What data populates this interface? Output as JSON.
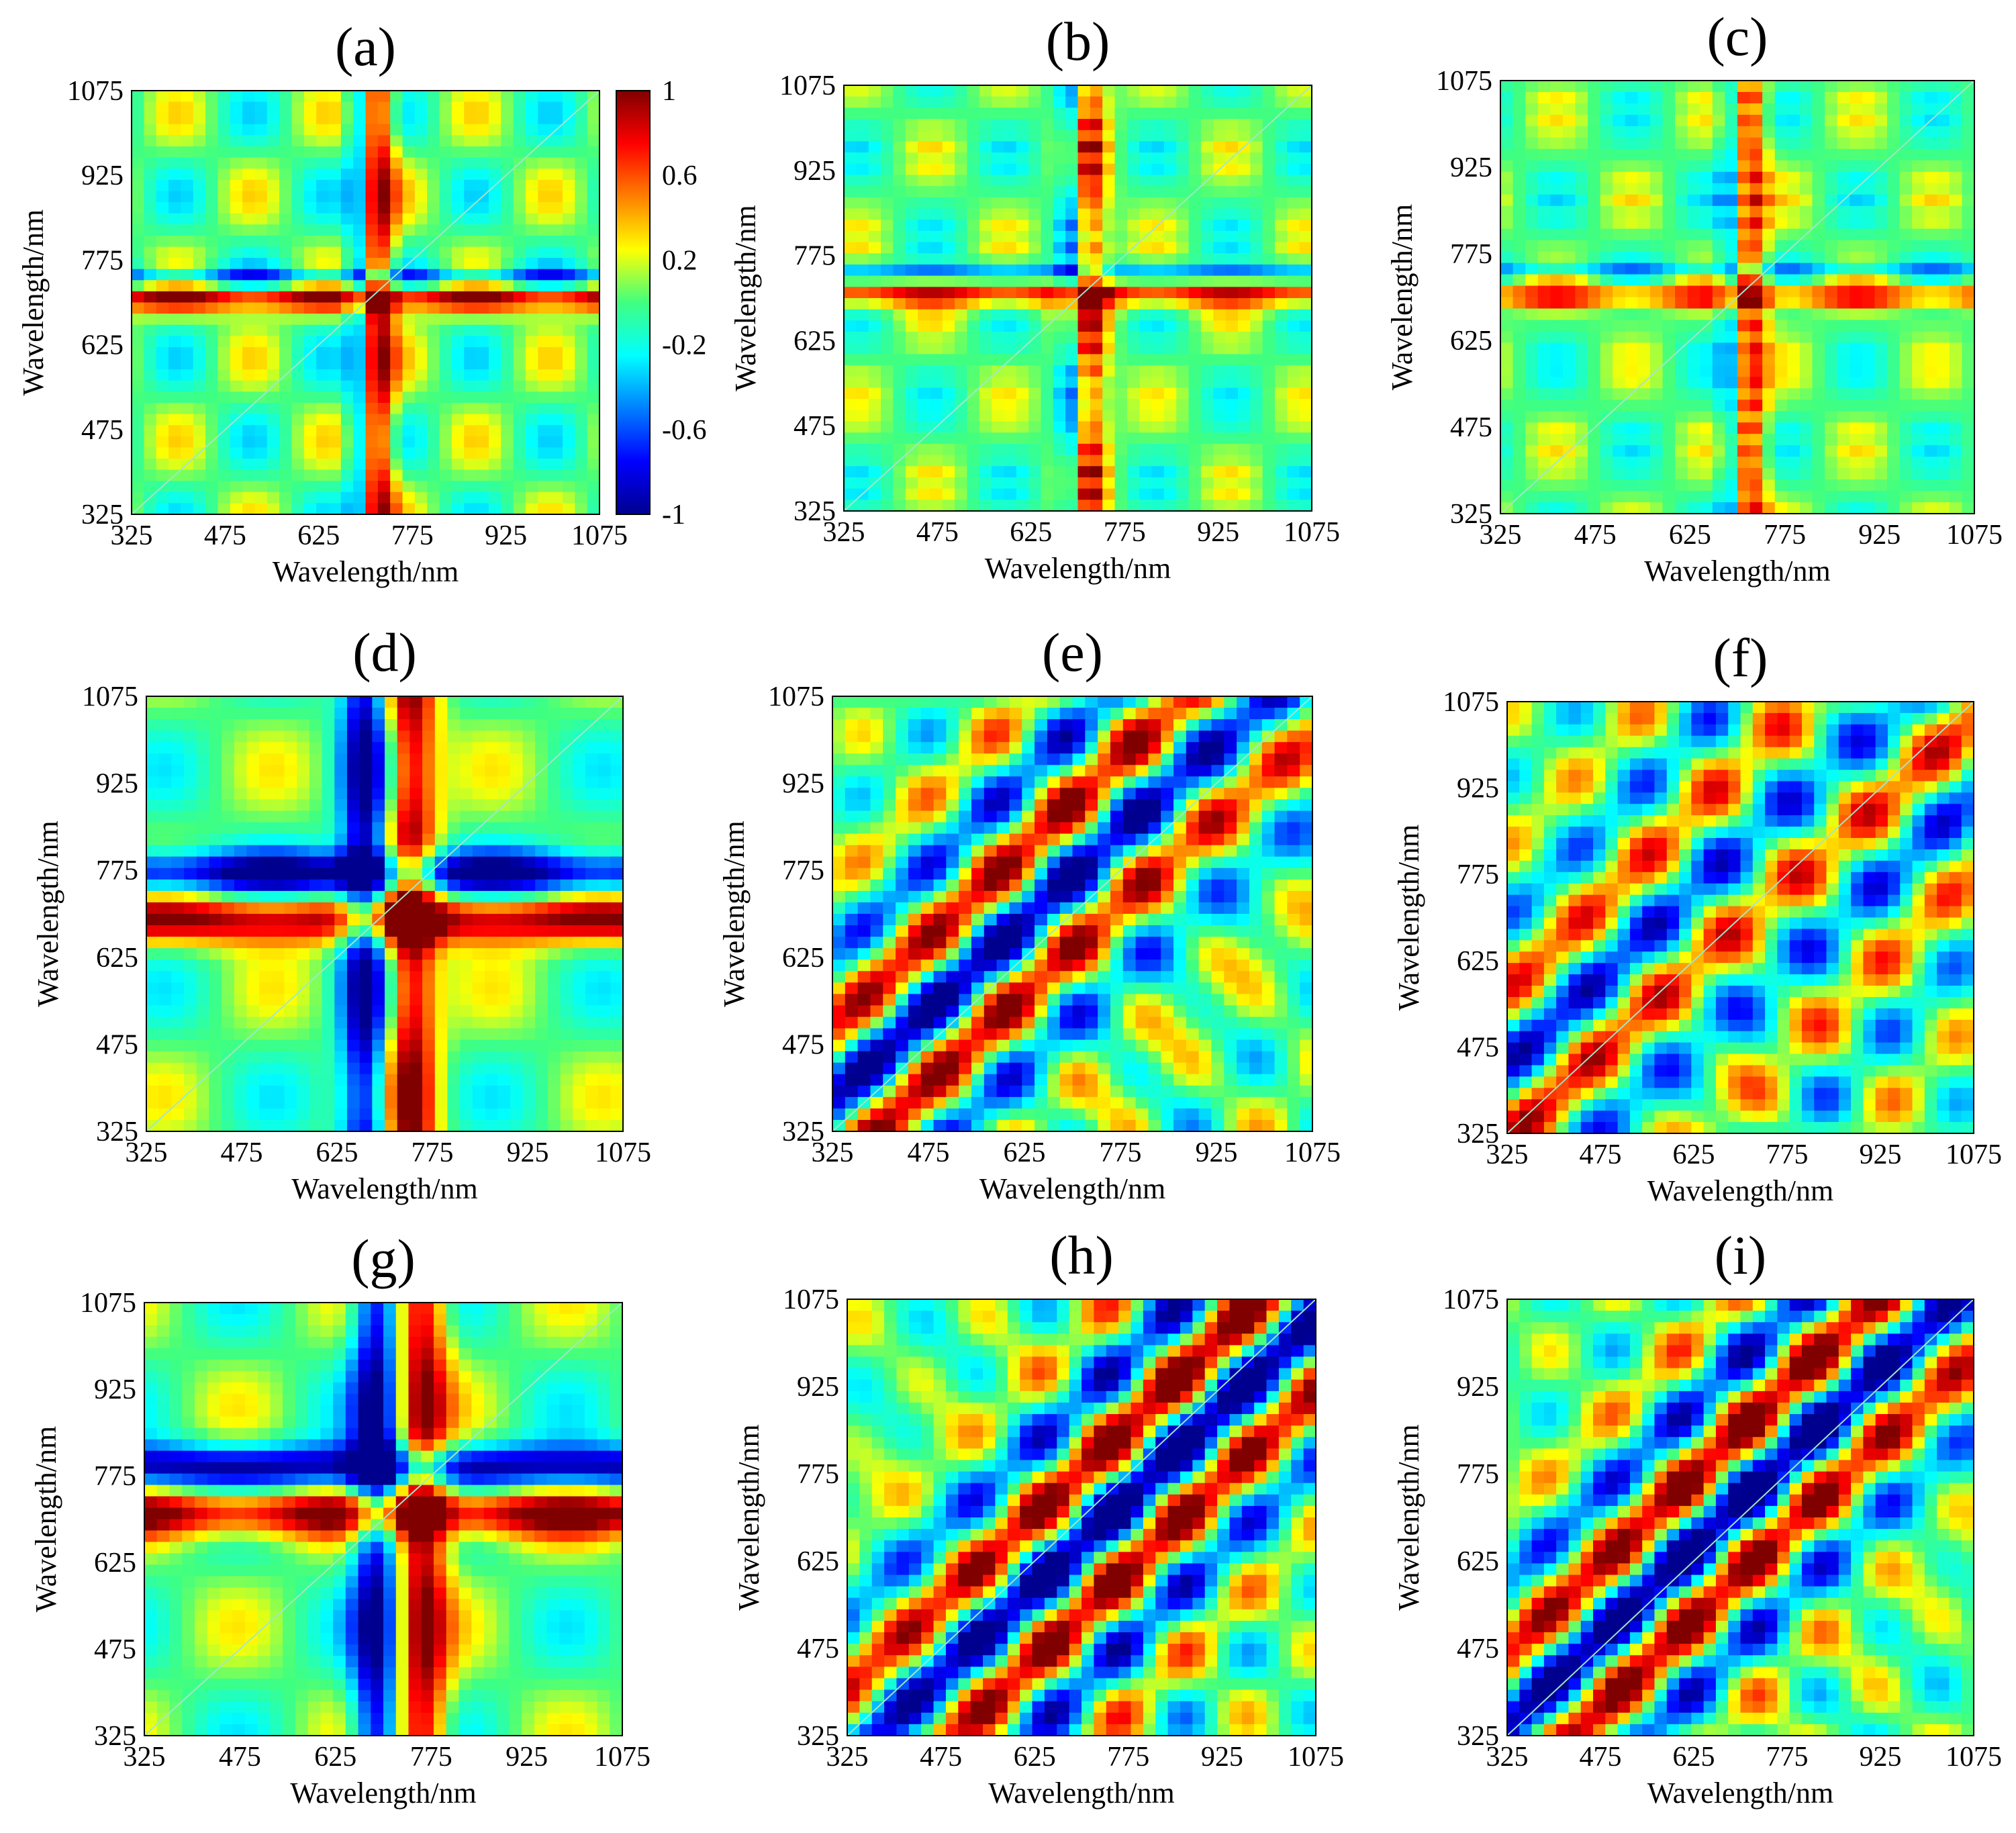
{
  "figure": {
    "panel_count": 9,
    "colormap": "jet",
    "colorbar_panel": "(a)"
  },
  "chart_data": [
    {
      "type": "heatmap",
      "panel_label": "(a)",
      "xlabel": "Wavelength/nm",
      "ylabel": "Wavelength/nm",
      "xlim": [
        325,
        1075
      ],
      "ylim": [
        325,
        1075
      ],
      "xticks": [
        "325",
        "475",
        "625",
        "775",
        "925",
        "1075"
      ],
      "yticks": [
        "325",
        "475",
        "625",
        "775",
        "925",
        "1075"
      ],
      "colorbar": {
        "ticks": [
          "1",
          "0.6",
          "0.2",
          "-0.2",
          "-0.6",
          "-1"
        ],
        "range": [
          -1,
          1
        ]
      }
    },
    {
      "type": "heatmap",
      "panel_label": "(b)",
      "xlabel": "Wavelength/nm",
      "ylabel": "Wavelength/nm",
      "xlim": [
        325,
        1075
      ],
      "ylim": [
        325,
        1075
      ],
      "xticks": [
        "325",
        "475",
        "625",
        "775",
        "925",
        "1075"
      ],
      "yticks": [
        "325",
        "475",
        "625",
        "775",
        "925",
        "1075"
      ]
    },
    {
      "type": "heatmap",
      "panel_label": "(c)",
      "xlabel": "Wavelength/nm",
      "ylabel": "Wavelength/nm",
      "xlim": [
        325,
        1075
      ],
      "ylim": [
        325,
        1075
      ],
      "xticks": [
        "325",
        "475",
        "625",
        "775",
        "925",
        "1075"
      ],
      "yticks": [
        "325",
        "475",
        "625",
        "775",
        "925",
        "1075"
      ]
    },
    {
      "type": "heatmap",
      "panel_label": "(d)",
      "xlabel": "Wavelength/nm",
      "ylabel": "Wavelength/nm",
      "xlim": [
        325,
        1075
      ],
      "ylim": [
        325,
        1075
      ],
      "xticks": [
        "325",
        "475",
        "625",
        "775",
        "925",
        "1075"
      ],
      "yticks": [
        "325",
        "475",
        "625",
        "775",
        "925",
        "1075"
      ]
    },
    {
      "type": "heatmap",
      "panel_label": "(e)",
      "xlabel": "Wavelength/nm",
      "ylabel": "Wavelength/nm",
      "xlim": [
        325,
        1075
      ],
      "ylim": [
        325,
        1075
      ],
      "xticks": [
        "325",
        "475",
        "625",
        "775",
        "925",
        "1075"
      ],
      "yticks": [
        "325",
        "475",
        "625",
        "775",
        "925",
        "1075"
      ]
    },
    {
      "type": "heatmap",
      "panel_label": "(f)",
      "xlabel": "Wavelength/nm",
      "ylabel": "Wavelength/nm",
      "xlim": [
        325,
        1075
      ],
      "ylim": [
        325,
        1075
      ],
      "xticks": [
        "325",
        "475",
        "625",
        "775",
        "925",
        "1075"
      ],
      "yticks": [
        "325",
        "475",
        "625",
        "775",
        "925",
        "1075"
      ]
    },
    {
      "type": "heatmap",
      "panel_label": "(g)",
      "xlabel": "Wavelength/nm",
      "ylabel": "Wavelength/nm",
      "xlim": [
        325,
        1075
      ],
      "ylim": [
        325,
        1075
      ],
      "xticks": [
        "325",
        "475",
        "625",
        "775",
        "925",
        "1075"
      ],
      "yticks": [
        "325",
        "475",
        "625",
        "775",
        "925",
        "1075"
      ]
    },
    {
      "type": "heatmap",
      "panel_label": "(h)",
      "xlabel": "Wavelength/nm",
      "ylabel": "Wavelength/nm",
      "xlim": [
        325,
        1075
      ],
      "ylim": [
        325,
        1075
      ],
      "xticks": [
        "325",
        "475",
        "625",
        "775",
        "925",
        "1075"
      ],
      "yticks": [
        "325",
        "475",
        "625",
        "775",
        "925",
        "1075"
      ]
    },
    {
      "type": "heatmap",
      "panel_label": "(i)",
      "xlabel": "Wavelength/nm",
      "ylabel": "Wavelength/nm",
      "xlim": [
        325,
        1075
      ],
      "ylim": [
        325,
        1075
      ],
      "xticks": [
        "325",
        "475",
        "625",
        "775",
        "925",
        "1075"
      ],
      "yticks": [
        "325",
        "475",
        "625",
        "775",
        "925",
        "1075"
      ]
    }
  ]
}
